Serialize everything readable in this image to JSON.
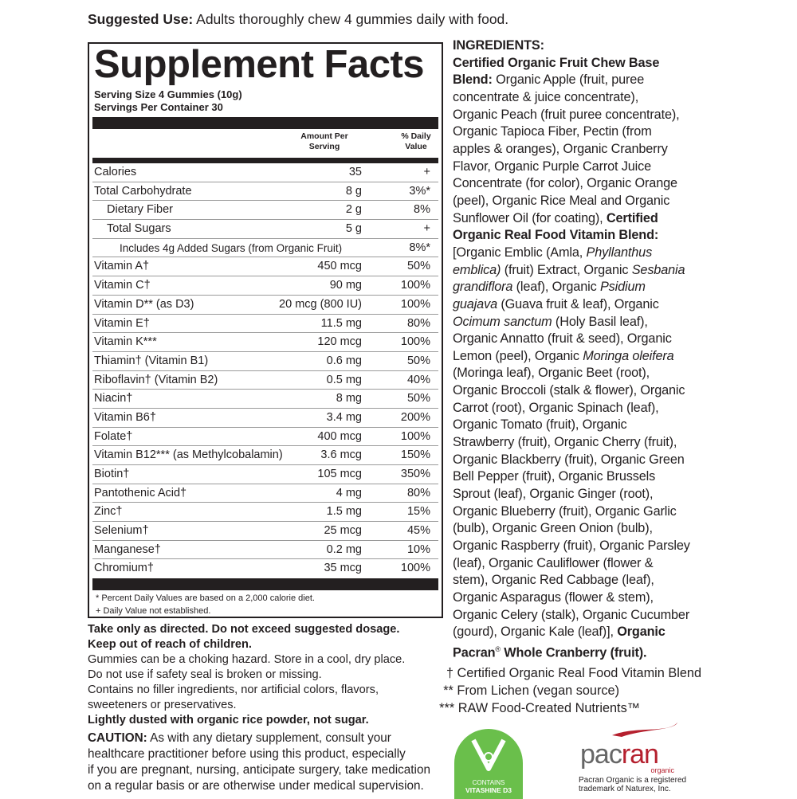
{
  "suggested_use": {
    "label": "Suggested Use:",
    "text": " Adults thoroughly chew 4 gummies daily with food."
  },
  "facts": {
    "title": "Supplement Facts",
    "serving_size": "Serving Size 4 Gummies (10g)",
    "servings_per_container": "Servings Per Container 30",
    "col_amount": "Amount Per Serving",
    "col_dv": "% Daily Value",
    "rows": [
      {
        "name": "Calories",
        "amount": "35",
        "dv": "+",
        "indent": 0
      },
      {
        "name": "Total Carbohydrate",
        "amount": "8 g",
        "dv": "3%*",
        "indent": 0
      },
      {
        "name": "Dietary Fiber",
        "amount": "2 g",
        "dv": "8%",
        "indent": 1
      },
      {
        "name": "Total Sugars",
        "amount": "5 g",
        "dv": "+",
        "indent": 1
      },
      {
        "name": "Includes 4g Added Sugars (from Organic Fruit)",
        "amount": "",
        "dv": "8%*",
        "indent": 2
      },
      {
        "name": "Vitamin A†",
        "amount": "450 mcg",
        "dv": "50%",
        "indent": 0
      },
      {
        "name": "Vitamin C†",
        "amount": "90 mg",
        "dv": "100%",
        "indent": 0
      },
      {
        "name": "Vitamin D** (as D3)",
        "amount": "20 mcg (800 IU)",
        "dv": "100%",
        "indent": 0
      },
      {
        "name": "Vitamin E†",
        "amount": "11.5 mg",
        "dv": "80%",
        "indent": 0
      },
      {
        "name": "Vitamin K***",
        "amount": "120 mcg",
        "dv": "100%",
        "indent": 0
      },
      {
        "name": "Thiamin† (Vitamin B1)",
        "amount": "0.6 mg",
        "dv": "50%",
        "indent": 0
      },
      {
        "name": "Riboflavin† (Vitamin B2)",
        "amount": "0.5 mg",
        "dv": "40%",
        "indent": 0
      },
      {
        "name": "Niacin†",
        "amount": "8 mg",
        "dv": "50%",
        "indent": 0
      },
      {
        "name": "Vitamin B6†",
        "amount": "3.4 mg",
        "dv": "200%",
        "indent": 0
      },
      {
        "name": "Folate†",
        "amount": "400 mcg",
        "dv": "100%",
        "indent": 0
      },
      {
        "name": "Vitamin B12*** (as Methylcobalamin)",
        "amount": "3.6 mcg",
        "dv": "150%",
        "indent": 0
      },
      {
        "name": "Biotin†",
        "amount": "105 mcg",
        "dv": "350%",
        "indent": 0
      },
      {
        "name": "Pantothenic Acid†",
        "amount": "4 mg",
        "dv": "80%",
        "indent": 0
      },
      {
        "name": "Zinc†",
        "amount": "1.5 mg",
        "dv": "15%",
        "indent": 0
      },
      {
        "name": "Selenium†",
        "amount": "25 mcg",
        "dv": "45%",
        "indent": 0
      },
      {
        "name": "Manganese†",
        "amount": "0.2 mg",
        "dv": "10%",
        "indent": 0
      },
      {
        "name": "Chromium†",
        "amount": "35 mcg",
        "dv": "100%",
        "indent": 0
      }
    ],
    "footnote1": "* Percent Daily Values are based on a 2,000 calorie diet.",
    "footnote2": "+ Daily Value not established."
  },
  "warnings": [
    {
      "text": "Take only as directed. Do not exceed suggested dosage.",
      "bold": true
    },
    {
      "text": "Keep out of reach of children.",
      "bold": true
    },
    {
      "text": "Gummies can be a choking hazard. Store in a cool, dry place.",
      "bold": false
    },
    {
      "text": "Do not use if safety seal is broken or missing.",
      "bold": false
    },
    {
      "text": "Contains no filler ingredients, nor artificial colors, flavors,",
      "bold": false
    },
    {
      "text": "sweeteners or preservatives.",
      "bold": false
    },
    {
      "text": "Lightly dusted with organic rice powder, not sugar.",
      "bold": true
    }
  ],
  "caution": {
    "label": "CAUTION:",
    "lines": [
      " As with any dietary supplement, consult your",
      "healthcare practitioner before using this product, especially",
      "if you are pregnant, nursing, anticipate surgery, take medication",
      "on a regular basis or are otherwise under medical supervision."
    ]
  },
  "ingredients": [
    [
      [
        "b",
        "INGREDIENTS:"
      ]
    ],
    [
      [
        "b",
        "Certified Organic Fruit Chew Base"
      ]
    ],
    [
      [
        "b",
        "Blend:"
      ],
      [
        "n",
        " Organic Apple (fruit, puree"
      ]
    ],
    [
      [
        "n",
        "concentrate & juice concentrate),"
      ]
    ],
    [
      [
        "n",
        "Organic Peach (fruit puree concentrate),"
      ]
    ],
    [
      [
        "n",
        "Organic Tapioca Fiber, Pectin (from"
      ]
    ],
    [
      [
        "n",
        "apples & oranges), Organic Cranberry"
      ]
    ],
    [
      [
        "n",
        "Flavor, Organic Purple Carrot Juice"
      ]
    ],
    [
      [
        "n",
        "Concentrate (for color), Organic Orange"
      ]
    ],
    [
      [
        "n",
        "(peel), Organic Rice Meal and Organic"
      ]
    ],
    [
      [
        "n",
        "Sunflower Oil (for coating), "
      ],
      [
        "b",
        "Certified"
      ]
    ],
    [
      [
        "b",
        "Organic Real Food Vitamin Blend:"
      ]
    ],
    [
      [
        "n",
        "[Organic Emblic (Amla, "
      ],
      [
        "i",
        "Phyllanthus"
      ]
    ],
    [
      [
        "i",
        "emblica)"
      ],
      [
        "n",
        " (fruit) Extract, Organic "
      ],
      [
        "i",
        "Sesbania"
      ]
    ],
    [
      [
        "i",
        "grandiflora"
      ],
      [
        "n",
        " (leaf), Organic "
      ],
      [
        "i",
        "Psidium"
      ]
    ],
    [
      [
        "i",
        "guajava"
      ],
      [
        "n",
        " (Guava fruit & leaf), Organic"
      ]
    ],
    [
      [
        "i",
        "Ocimum sanctum"
      ],
      [
        "n",
        " (Holy Basil leaf),"
      ]
    ],
    [
      [
        "n",
        "Organic Annatto (fruit & seed), Organic"
      ]
    ],
    [
      [
        "n",
        "Lemon (peel), Organic "
      ],
      [
        "i",
        "Moringa oleifera"
      ]
    ],
    [
      [
        "n",
        "(Moringa leaf), Organic Beet (root),"
      ]
    ],
    [
      [
        "n",
        "Organic Broccoli (stalk & flower), Organic"
      ]
    ],
    [
      [
        "n",
        "Carrot (root), Organic Spinach (leaf),"
      ]
    ],
    [
      [
        "n",
        "Organic Tomato (fruit), Organic"
      ]
    ],
    [
      [
        "n",
        "Strawberry (fruit), Organic Cherry (fruit),"
      ]
    ],
    [
      [
        "n",
        "Organic Blackberry (fruit), Organic Green"
      ]
    ],
    [
      [
        "n",
        "Bell Pepper (fruit), Organic Brussels"
      ]
    ],
    [
      [
        "n",
        "Sprout (leaf), Organic Ginger (root),"
      ]
    ],
    [
      [
        "n",
        "Organic Blueberry (fruit), Organic Garlic"
      ]
    ],
    [
      [
        "n",
        "(bulb), Organic Green Onion (bulb),"
      ]
    ],
    [
      [
        "n",
        "Organic Raspberry (fruit), Organic Parsley"
      ]
    ],
    [
      [
        "n",
        "(leaf), Organic Cauliflower (flower &"
      ]
    ],
    [
      [
        "n",
        "stem), Organic Red Cabbage (leaf),"
      ]
    ],
    [
      [
        "n",
        "Organic Asparagus (flower & stem),"
      ]
    ],
    [
      [
        "n",
        "Organic Celery (stalk), Organic Cucumber"
      ]
    ],
    [
      [
        "n",
        "(gourd), Organic Kale (leaf)], "
      ],
      [
        "b",
        "Organic"
      ]
    ],
    [
      [
        "b",
        "Pacran"
      ],
      [
        "s",
        "®"
      ],
      [
        "b",
        " Whole Cranberry (fruit)."
      ]
    ]
  ],
  "notes": [
    "† Certified Organic Real Food Vitamin Blend",
    "** From Lichen (vegan source)",
    "*** RAW Food-Created Nutrients™"
  ],
  "badge": {
    "line1": "CONTAINS",
    "line2": "VITASHINE D3",
    "color": "#6abf4b"
  },
  "pacran": {
    "brand_a": "pac",
    "brand_b": "ran",
    "sub": "organic",
    "note1": "Pacran Organic is a registered",
    "note2": "trademark of Naturex, Inc.",
    "color": "#b5202e"
  }
}
